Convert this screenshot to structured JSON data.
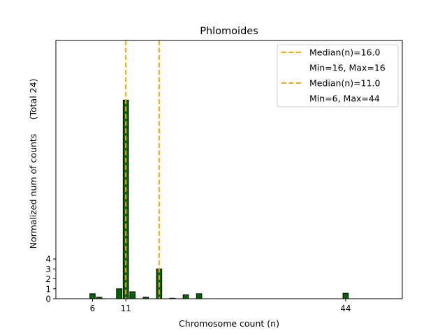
{
  "chart_data": {
    "type": "bar",
    "title": "Phlomoides",
    "xlabel": "Chromosome count (n)",
    "ylabel": "Normalized num of counts",
    "ylabel_note": "(Total 24)",
    "xlim": [
      0.5,
      52.5
    ],
    "ylim": [
      0,
      26
    ],
    "xticks": [
      6,
      11,
      44
    ],
    "yticks": [
      0,
      1,
      2,
      3,
      4
    ],
    "bar_width": 0.8,
    "bar_color": "#006400",
    "bar_edge_color": "#000000",
    "bars": [
      {
        "x": 6,
        "y": 0.5
      },
      {
        "x": 7,
        "y": 0.15
      },
      {
        "x": 10,
        "y": 1.0
      },
      {
        "x": 11,
        "y": 20.0
      },
      {
        "x": 12,
        "y": 0.7
      },
      {
        "x": 14,
        "y": 0.15
      },
      {
        "x": 16,
        "y": 3.0
      },
      {
        "x": 18,
        "y": 0.05
      },
      {
        "x": 20,
        "y": 0.4
      },
      {
        "x": 22,
        "y": 0.5
      },
      {
        "x": 44,
        "y": 0.55
      }
    ],
    "median_lines": [
      {
        "x": 16.0,
        "color": "#FFA500"
      },
      {
        "x": 11.0,
        "color": "#FFA500"
      }
    ],
    "legend": {
      "placement": "top-right",
      "entries": [
        {
          "label": "Median(n)=16.0",
          "has_line": true
        },
        {
          "label": "Min=16, Max=16",
          "has_line": false
        },
        {
          "label": "Median(n)=11.0",
          "has_line": true
        },
        {
          "label": "Min=6, Max=44",
          "has_line": false
        }
      ]
    },
    "grid": false
  }
}
